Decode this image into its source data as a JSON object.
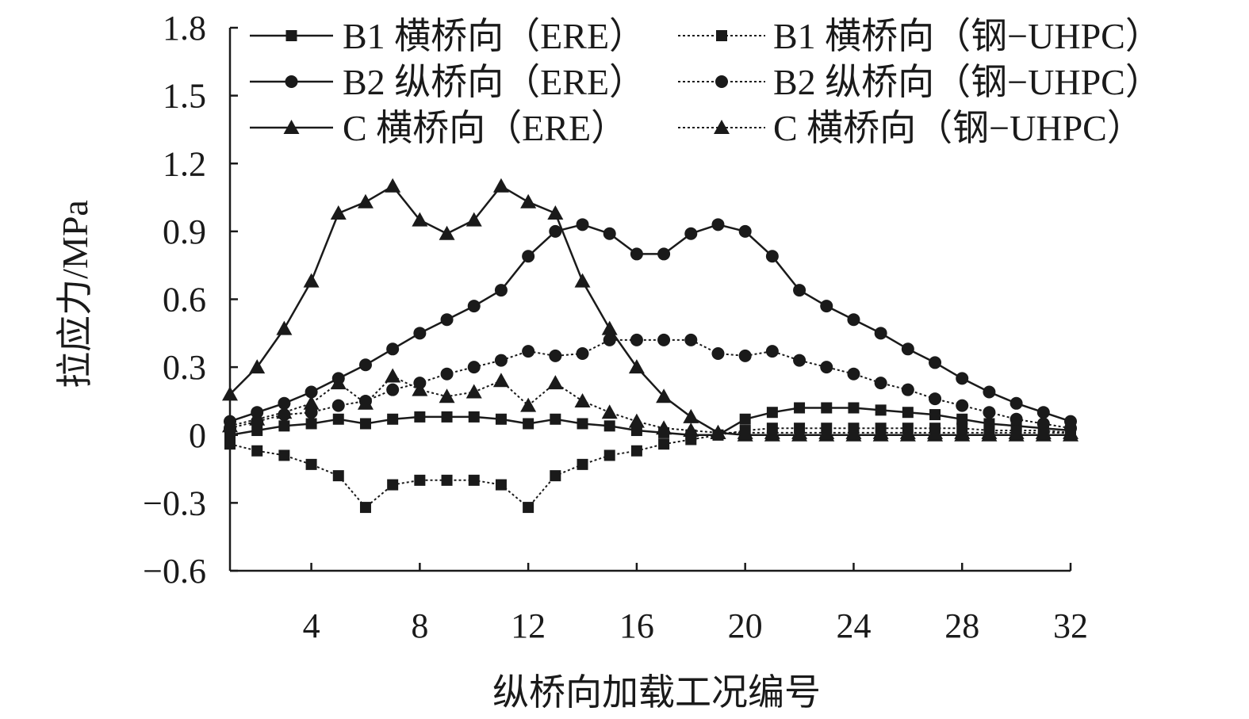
{
  "chart_data": {
    "type": "line",
    "title": "",
    "xlabel": "纵桥向加载工况编号",
    "ylabel": "拉应力/MPa",
    "xlim": [
      1,
      32
    ],
    "ylim": [
      -0.6,
      1.8
    ],
    "xticks": [
      4,
      8,
      12,
      16,
      20,
      24,
      28,
      32
    ],
    "xtick_labels": [
      "4",
      "8",
      "12",
      "16",
      "20",
      "24",
      "28",
      "32"
    ],
    "yticks": [
      -0.6,
      -0.3,
      0,
      0.3,
      0.6,
      0.9,
      1.2,
      1.5,
      1.8
    ],
    "ytick_labels": [
      "−0.6",
      "−0.3",
      "0",
      "0.3",
      "0.6",
      "0.9",
      "1.2",
      "1.5",
      "1.8"
    ],
    "grid": false,
    "legend_position": "top",
    "x": [
      1,
      2,
      3,
      4,
      5,
      6,
      7,
      8,
      9,
      10,
      11,
      12,
      13,
      14,
      15,
      16,
      17,
      18,
      19,
      20,
      21,
      22,
      23,
      24,
      25,
      26,
      27,
      28,
      29,
      30,
      31,
      32
    ],
    "series": [
      {
        "name": "B1 横桥向（ERE）",
        "marker": "square",
        "line": "solid",
        "values": [
          0.0,
          0.02,
          0.04,
          0.05,
          0.07,
          0.05,
          0.07,
          0.08,
          0.08,
          0.08,
          0.07,
          0.05,
          0.07,
          0.05,
          0.04,
          0.02,
          0.01,
          0.0,
          0.0,
          0.07,
          0.1,
          0.12,
          0.12,
          0.12,
          0.11,
          0.1,
          0.09,
          0.07,
          0.05,
          0.04,
          0.03,
          0.02
        ]
      },
      {
        "name": "B1 横桥向（钢−UHPC）",
        "marker": "square",
        "line": "dotted",
        "values": [
          -0.04,
          -0.07,
          -0.09,
          -0.13,
          -0.18,
          -0.32,
          -0.22,
          -0.2,
          -0.2,
          -0.2,
          -0.22,
          -0.32,
          -0.18,
          -0.13,
          -0.09,
          -0.07,
          -0.04,
          -0.02,
          0.0,
          0.02,
          0.03,
          0.03,
          0.03,
          0.03,
          0.03,
          0.03,
          0.03,
          0.03,
          0.02,
          0.02,
          0.02,
          0.01
        ]
      },
      {
        "name": "B2 纵桥向（ERE）",
        "marker": "circle",
        "line": "solid",
        "values": [
          0.06,
          0.1,
          0.14,
          0.19,
          0.25,
          0.31,
          0.38,
          0.45,
          0.51,
          0.57,
          0.64,
          0.79,
          0.9,
          0.93,
          0.89,
          0.8,
          0.8,
          0.89,
          0.93,
          0.9,
          0.79,
          0.64,
          0.57,
          0.51,
          0.45,
          0.38,
          0.32,
          0.25,
          0.19,
          0.14,
          0.1,
          0.06
        ]
      },
      {
        "name": "B2 纵桥向（钢−UHPC）",
        "marker": "circle",
        "line": "dotted",
        "values": [
          0.03,
          0.06,
          0.09,
          0.1,
          0.13,
          0.15,
          0.2,
          0.23,
          0.27,
          0.3,
          0.33,
          0.37,
          0.35,
          0.36,
          0.42,
          0.42,
          0.42,
          0.42,
          0.36,
          0.35,
          0.37,
          0.33,
          0.3,
          0.27,
          0.23,
          0.2,
          0.16,
          0.13,
          0.1,
          0.07,
          0.05,
          0.03
        ]
      },
      {
        "name": "C 横桥向（ERE）",
        "marker": "triangle",
        "line": "solid",
        "values": [
          0.18,
          0.3,
          0.47,
          0.68,
          0.98,
          1.03,
          1.1,
          0.95,
          0.89,
          0.95,
          1.1,
          1.03,
          0.98,
          0.68,
          0.47,
          0.3,
          0.17,
          0.08,
          0.01,
          0.0,
          0.0,
          0.0,
          0.0,
          0.0,
          0.0,
          0.0,
          0.0,
          0.0,
          0.0,
          0.0,
          0.0,
          0.0
        ]
      },
      {
        "name": "C 横桥向（钢−UHPC）",
        "marker": "triangle",
        "line": "dotted",
        "values": [
          0.04,
          0.07,
          0.1,
          0.14,
          0.23,
          0.14,
          0.26,
          0.2,
          0.17,
          0.19,
          0.24,
          0.13,
          0.23,
          0.15,
          0.1,
          0.06,
          0.03,
          0.02,
          0.01,
          0.01,
          0.01,
          0.01,
          0.01,
          0.01,
          0.01,
          0.01,
          0.01,
          0.01,
          0.01,
          0.01,
          0.01,
          0.01
        ]
      }
    ]
  }
}
